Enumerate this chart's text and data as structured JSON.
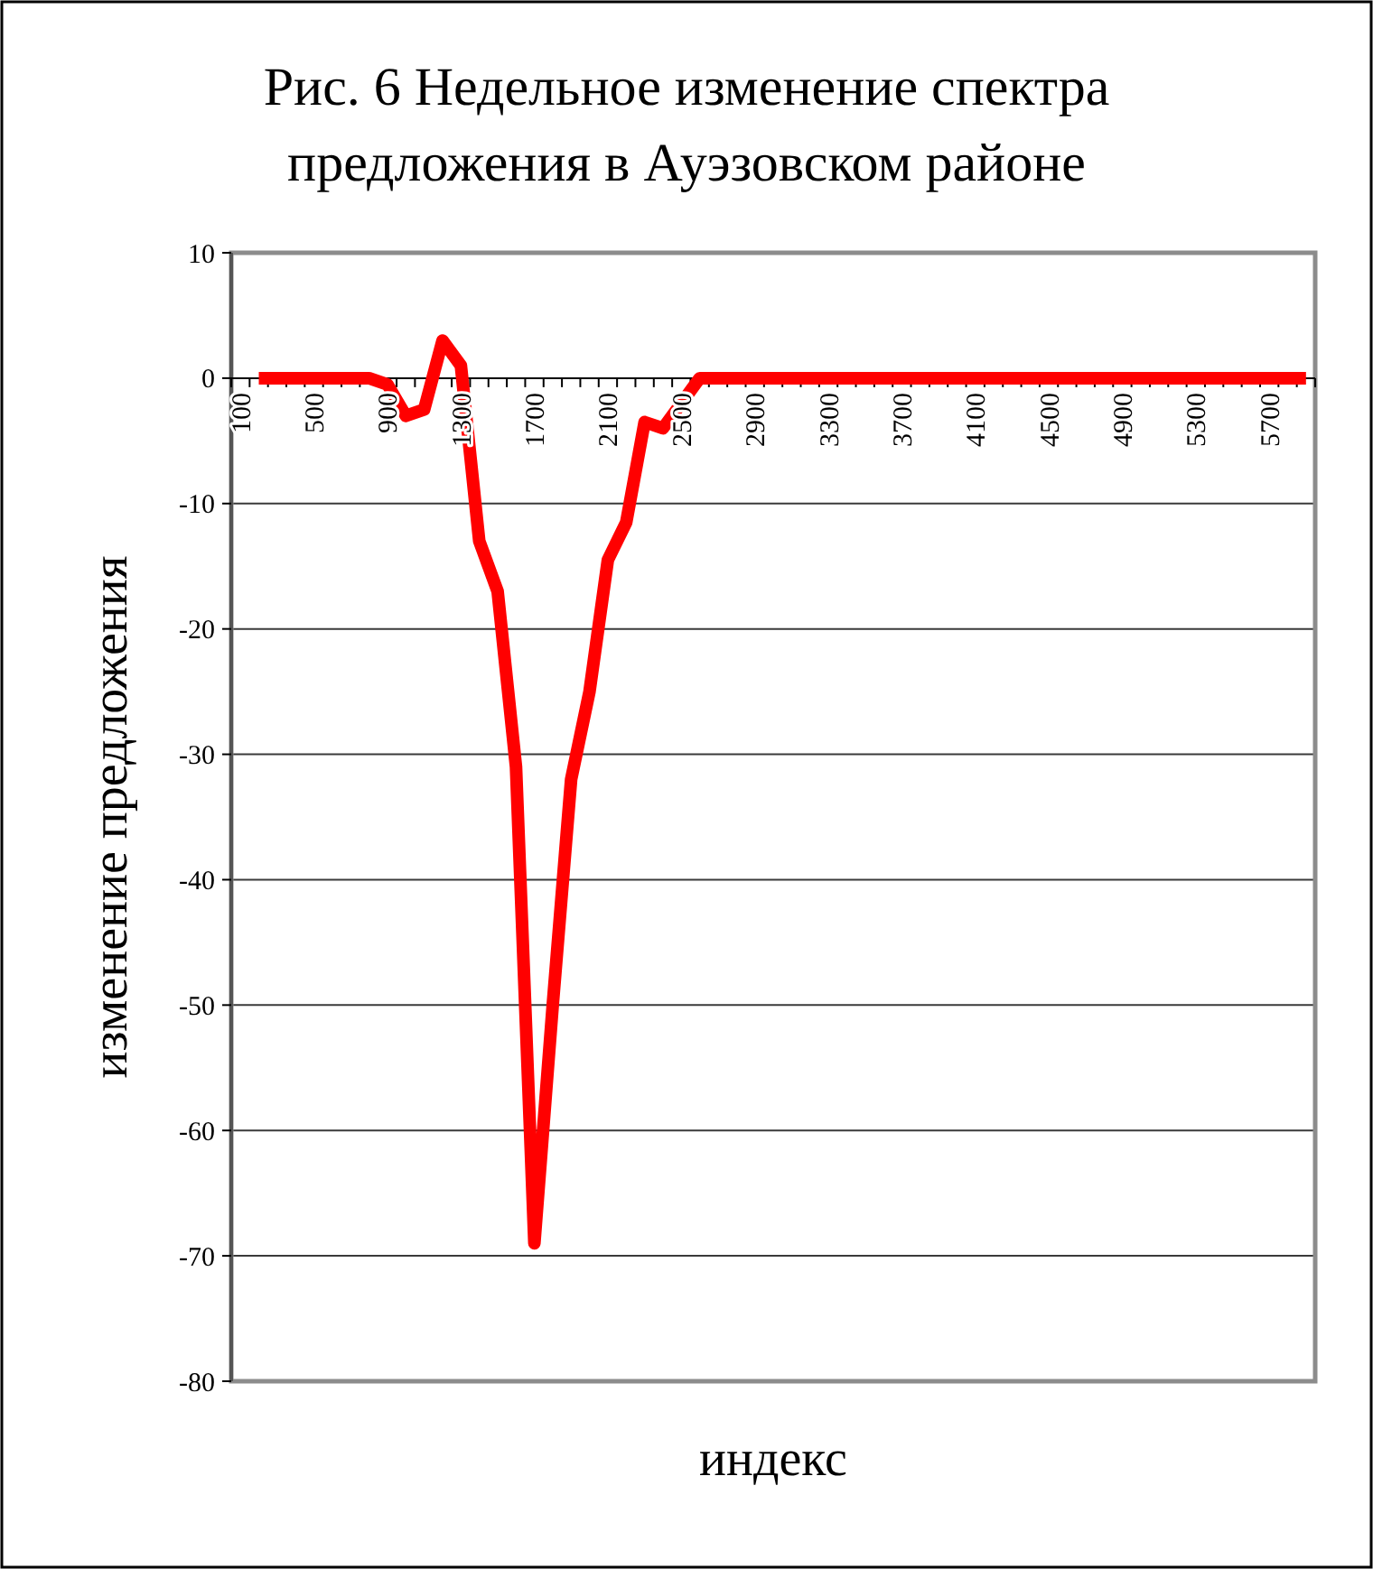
{
  "chart_data": {
    "type": "line",
    "title": "Рис. 6 Недельное изменение спектра предложения в Ауэзовском районе",
    "xlabel": "индекс",
    "ylabel": "изменение предложения",
    "categories": [
      "100",
      null,
      null,
      null,
      "500",
      null,
      null,
      null,
      "900",
      null,
      null,
      null,
      "1300",
      null,
      null,
      null,
      "1700",
      null,
      null,
      null,
      "2100",
      null,
      null,
      null,
      "2500",
      null,
      null,
      null,
      "2900",
      null,
      null,
      null,
      "3300",
      null,
      null,
      null,
      "3700",
      null,
      null,
      null,
      "4100",
      null,
      null,
      null,
      "4500",
      null,
      null,
      null,
      "4900",
      null,
      null,
      null,
      "5300",
      null,
      null,
      null,
      "5700",
      null,
      null
    ],
    "series": [
      {
        "color": "#ff0000",
        "values": [
          null,
          0,
          0,
          0,
          0,
          0,
          0,
          0,
          -0.5,
          -3,
          -2.5,
          3,
          1,
          -13,
          -17,
          -31,
          -69,
          -50,
          -32,
          -25,
          -14.5,
          -11.5,
          -3.5,
          -4,
          -2,
          0,
          0,
          0,
          0,
          0,
          0,
          0,
          0,
          0,
          0,
          0,
          0,
          0,
          0,
          0,
          0,
          0,
          0,
          0,
          0,
          0,
          0,
          0,
          0,
          0,
          0,
          0,
          0,
          0,
          0,
          0,
          0,
          0,
          0
        ]
      }
    ],
    "ylim": [
      -80,
      10
    ],
    "yticks": [
      10,
      0,
      -10,
      -20,
      -30,
      -40,
      -50,
      -60,
      -70,
      -80
    ],
    "grid": "y",
    "marker": "none",
    "line_style": "solid"
  }
}
